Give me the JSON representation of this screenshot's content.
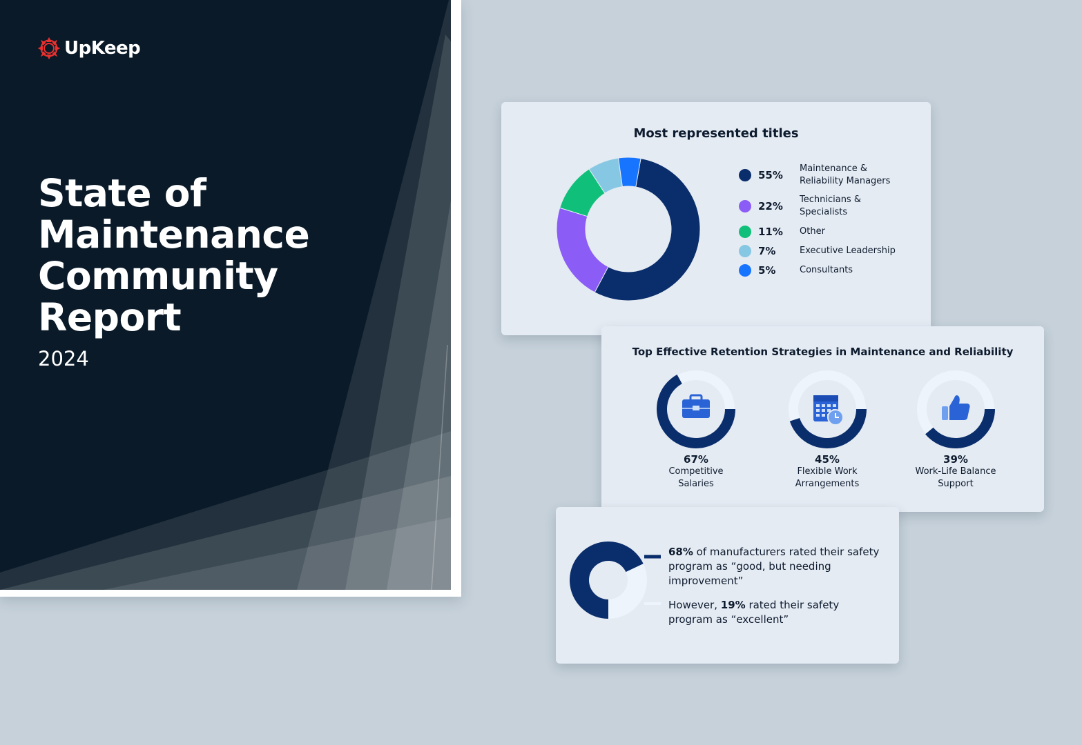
{
  "colors": {
    "background": "#c6d1da",
    "cover_bg": "#0a1a28",
    "card_bg": "#e5ebf3",
    "navy": "#0a2d6b",
    "purple": "#8b5cf6",
    "green": "#10c07a",
    "light_blue": "#86c8e3",
    "blue": "#1674ff",
    "ring_track": "#eef4fc",
    "logo_red": "#e8312e"
  },
  "cover": {
    "logo_text": "UpKeep",
    "logo_icon": "gear-icon",
    "title": "State of Maintenance Community Report",
    "year": "2024"
  },
  "chart_data": [
    {
      "type": "pie",
      "title": "Most represented titles",
      "categories": [
        "Maintenance & Reliability Managers",
        "Technicians & Specialists",
        "Other",
        "Executive Leadership",
        "Consultants"
      ],
      "values": [
        55,
        22,
        11,
        7,
        5
      ],
      "labels": [
        "55%",
        "22%",
        "11%",
        "7%",
        "5%"
      ],
      "colors": [
        "#0a2d6b",
        "#8b5cf6",
        "#10c07a",
        "#86c8e3",
        "#1674ff"
      ],
      "legend": "right",
      "label_lines": [
        [
          "Maintenance &",
          "Reliability Managers"
        ],
        [
          "Technicians &",
          "Specialists"
        ],
        [
          "Other"
        ],
        [
          "Executive Leadership"
        ],
        [
          "Consultants"
        ]
      ]
    },
    {
      "type": "bar",
      "title": "Top Effective Retention Strategies in Maintenance and Reliability",
      "categories": [
        "Competitive Salaries",
        "Flexible Work Arrangements",
        "Work-Life Balance Support"
      ],
      "values": [
        67,
        45,
        39
      ],
      "labels": [
        "67%",
        "45%",
        "39%"
      ],
      "icons": [
        "briefcase-icon",
        "calendar-clock-icon",
        "thumbs-up-icon"
      ],
      "label_lines": [
        [
          "Competitive",
          "Salaries"
        ],
        [
          "Flexible Work",
          "Arrangements"
        ],
        [
          "Work-Life Balance",
          "Support"
        ]
      ]
    },
    {
      "type": "pie",
      "title": "",
      "categories": [
        "good, but needing improvement",
        "excellent"
      ],
      "values": [
        68,
        19
      ],
      "labels": [
        "68%",
        "19%"
      ]
    }
  ],
  "safety": {
    "p1_bold": "68%",
    "p1_rest": " of manufacturers rated their safety program as “good, but needing improvement”",
    "p2_pre": "However, ",
    "p2_bold": "19%",
    "p2_rest": " rated their safety program as “excellent”"
  }
}
